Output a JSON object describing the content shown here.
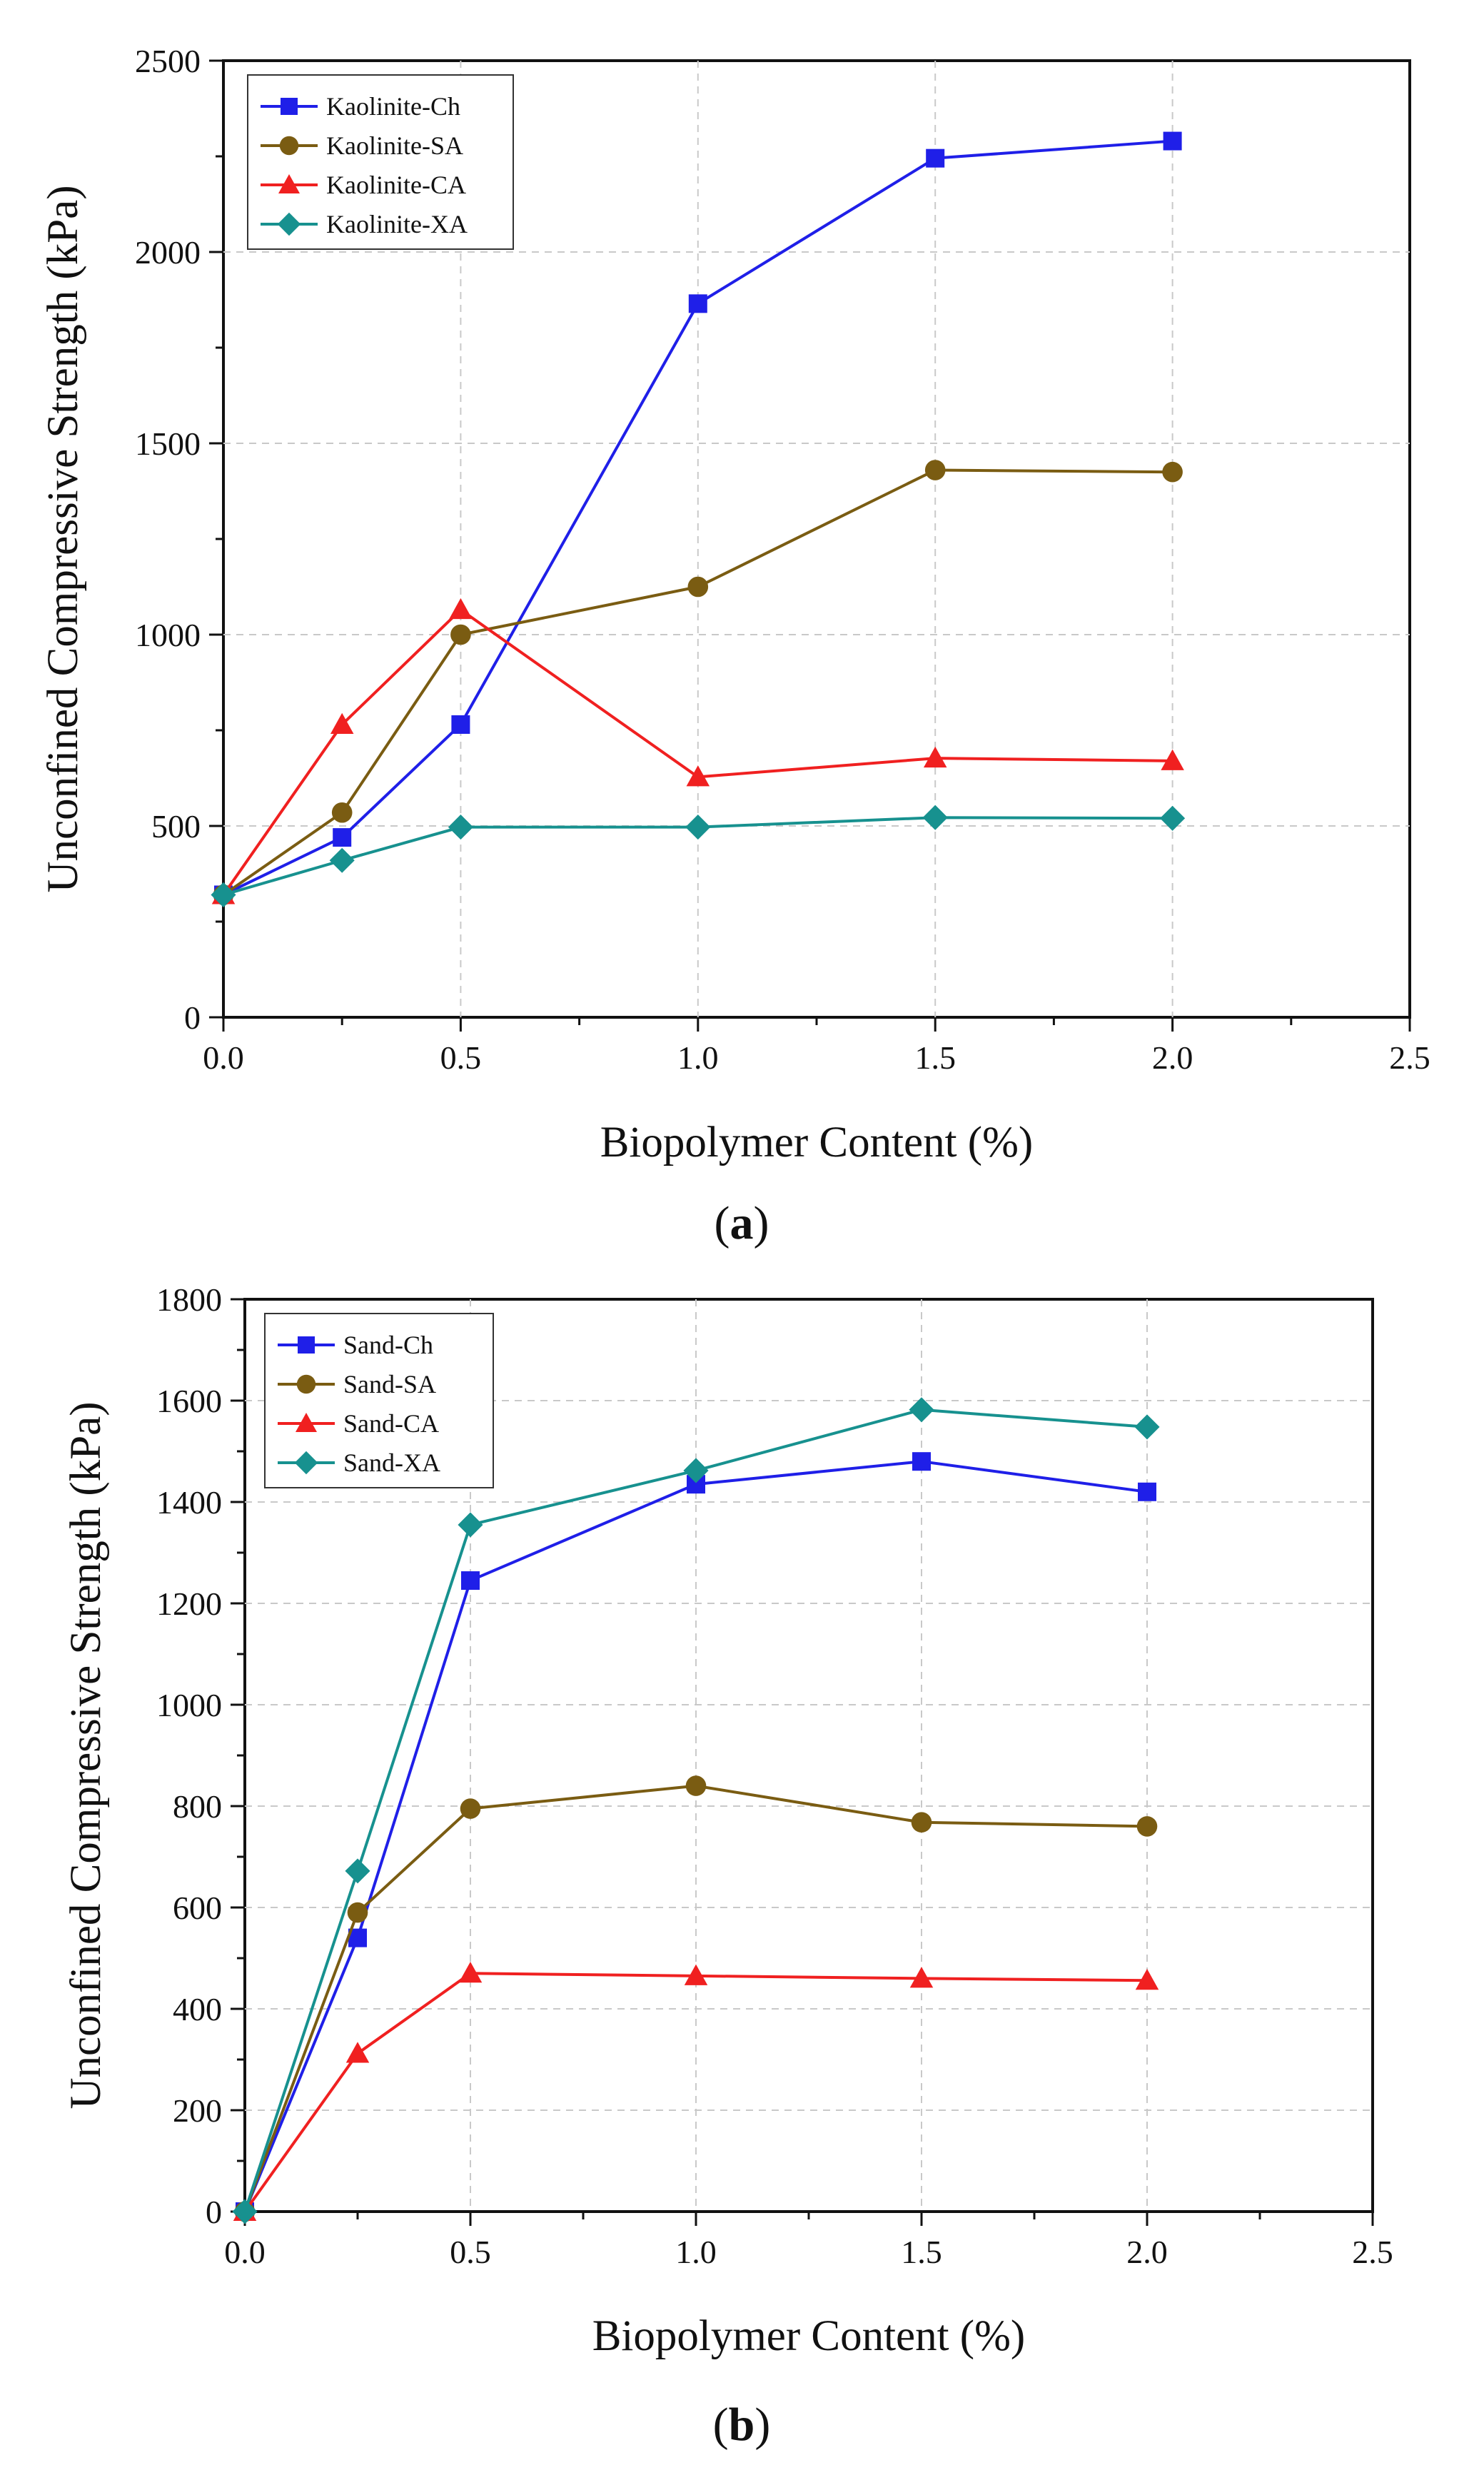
{
  "chart_data": [
    {
      "type": "line",
      "panel": "(a)",
      "panel_letter": "a",
      "xlabel": "Biopolymer Content (%)",
      "ylabel": "Unconfined Compressive Strength (kPa)",
      "xlim": [
        0,
        2.5
      ],
      "ylim": [
        0,
        2500
      ],
      "xticks": [
        "0.0",
        "0.5",
        "1.0",
        "1.5",
        "2.0",
        "2.5"
      ],
      "yticks": [
        "0",
        "500",
        "1000",
        "1500",
        "2000",
        "2500"
      ],
      "grid": true,
      "legend_position": "top-left",
      "x": [
        0,
        0.25,
        0.5,
        1.0,
        1.5,
        2.0
      ],
      "series": [
        {
          "name": "Kaolinite-Ch",
          "marker": "square",
          "color": "#1f1fe8",
          "values": [
            320,
            470,
            765,
            1865,
            2245,
            2290
          ]
        },
        {
          "name": "Kaolinite-SA",
          "marker": "circle",
          "color": "#7a5c12",
          "values": [
            320,
            535,
            1000,
            1125,
            1430,
            1425
          ]
        },
        {
          "name": "Kaolinite-CA",
          "marker": "triangle",
          "color": "#f02020",
          "values": [
            320,
            765,
            1065,
            628,
            677,
            670
          ]
        },
        {
          "name": "Kaolinite-XA",
          "marker": "diamond",
          "color": "#17918f",
          "values": [
            320,
            410,
            497,
            497,
            522,
            520
          ]
        }
      ]
    },
    {
      "type": "line",
      "panel": "(b)",
      "panel_letter": "b",
      "xlabel": "Biopolymer Content (%)",
      "ylabel": "Unconfined Compressive Strength (kPa)",
      "xlim": [
        0,
        2.5
      ],
      "ylim": [
        0,
        1800
      ],
      "xticks": [
        "0.0",
        "0.5",
        "1.0",
        "1.5",
        "2.0",
        "2.5"
      ],
      "yticks": [
        "0",
        "200",
        "400",
        "600",
        "800",
        "1000",
        "1200",
        "1400",
        "1600",
        "1800"
      ],
      "grid": true,
      "legend_position": "top-left",
      "x": [
        0,
        0.25,
        0.5,
        1.0,
        1.5,
        2.0
      ],
      "series": [
        {
          "name": "Sand-Ch",
          "marker": "square",
          "color": "#1f1fe8",
          "values": [
            0,
            540,
            1245,
            1435,
            1480,
            1420
          ]
        },
        {
          "name": "Sand-SA",
          "marker": "circle",
          "color": "#7a5c12",
          "values": [
            0,
            590,
            795,
            840,
            768,
            760
          ]
        },
        {
          "name": "Sand-CA",
          "marker": "triangle",
          "color": "#f02020",
          "values": [
            0,
            312,
            470,
            465,
            460,
            456
          ]
        },
        {
          "name": "Sand-XA",
          "marker": "diamond",
          "color": "#17918f",
          "values": [
            0,
            672,
            1355,
            1462,
            1582,
            1548
          ]
        }
      ]
    }
  ]
}
